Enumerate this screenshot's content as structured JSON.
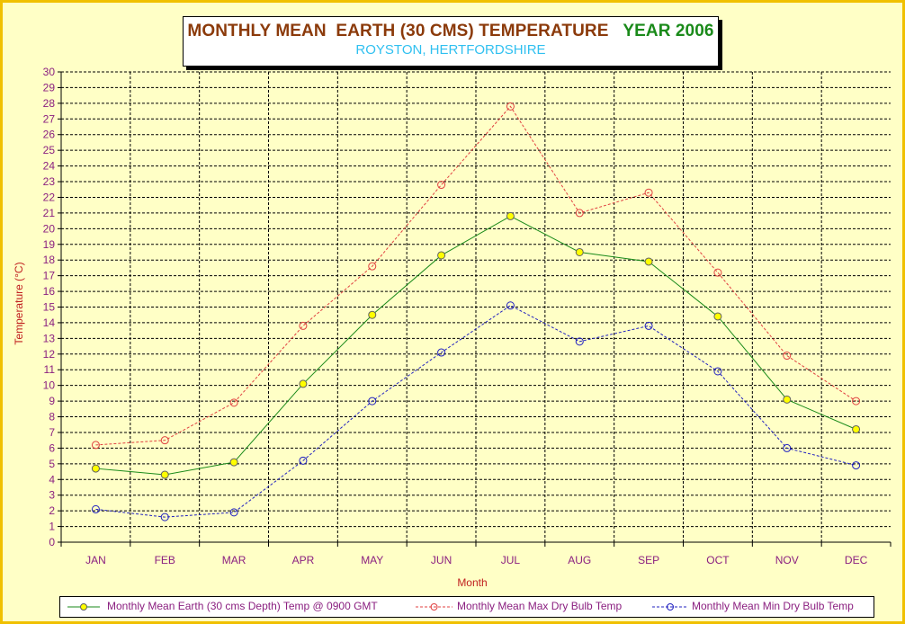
{
  "title_part1": "MONTHLY MEAN  EARTH (30 CMS) TEMPERATURE",
  "title_part2": "YEAR 2006",
  "subtitle": "ROYSTON, HERTFORDSHIRE",
  "colors": {
    "background": "#ffffc6",
    "border": "#f0c000",
    "title_primary": "#8b3a0a",
    "title_year": "#1a8a1a",
    "subtitle": "#30c0f0",
    "series_earth": "#1a8a1a",
    "series_earth_marker": "#ffff00",
    "series_max": "#e04040",
    "series_min": "#2020c0"
  },
  "chart_data": {
    "type": "line",
    "title": "MONTHLY MEAN  EARTH (30 CMS) TEMPERATURE   YEAR 2006",
    "subtitle": "ROYSTON, HERTFORDSHIRE",
    "xlabel": "Month",
    "ylabel": "Temperature (°C)",
    "ylim": [
      0,
      30
    ],
    "ytick_step": 1,
    "grid": true,
    "legend_position": "bottom",
    "categories": [
      "JAN",
      "FEB",
      "MAR",
      "APR",
      "MAY",
      "JUN",
      "JUL",
      "AUG",
      "SEP",
      "OCT",
      "NOV",
      "DEC"
    ],
    "series": [
      {
        "name": "Monthly Mean Earth (30 cms Depth) Temp @ 0900 GMT",
        "style": "solid",
        "values": [
          4.7,
          4.3,
          5.1,
          10.1,
          14.5,
          18.3,
          20.8,
          18.5,
          17.9,
          14.4,
          9.1,
          7.2
        ]
      },
      {
        "name": "Monthly Mean Max Dry Bulb Temp",
        "style": "dashed",
        "values": [
          6.2,
          6.5,
          8.9,
          13.8,
          17.6,
          22.8,
          27.8,
          21.0,
          22.3,
          17.2,
          11.9,
          9.0
        ]
      },
      {
        "name": "Monthly Mean Min Dry Bulb Temp",
        "style": "dashed",
        "values": [
          2.1,
          1.6,
          1.9,
          5.2,
          9.0,
          12.1,
          15.1,
          12.8,
          13.8,
          10.9,
          6.0,
          4.9
        ]
      }
    ]
  }
}
